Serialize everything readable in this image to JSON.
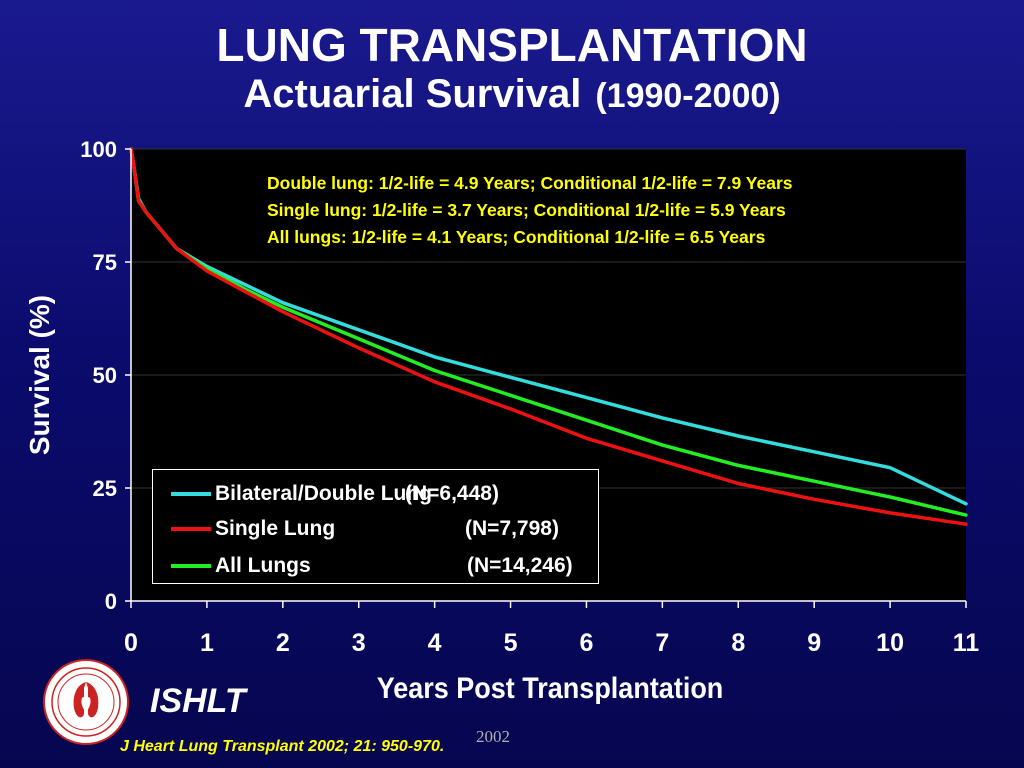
{
  "slide": {
    "title": "LUNG TRANSPLANTATION",
    "subtitle": "Actuarial Survival",
    "subtitle_range": "(1990-2000)",
    "brand": "ISHLT",
    "citation": "J Heart Lung Transplant 2002; 21: 950-970.",
    "year_mark": "2002",
    "logo_icon": "ishlt-seal-icon"
  },
  "annotations": [
    "Double lung: 1/2-life = 4.9 Years; Conditional 1/2-life = 7.9 Years",
    "Single lung: 1/2-life = 3.7 Years; Conditional 1/2-life = 5.9 Years",
    "All lungs: 1/2-life = 4.1 Years; Conditional 1/2-life = 6.5 Years"
  ],
  "chart_data": {
    "type": "line",
    "xlabel": "Years Post Transplantation",
    "ylabel": "Survival (%)",
    "xlim": [
      0,
      11
    ],
    "ylim": [
      0,
      100
    ],
    "xticks": [
      "0",
      "1",
      "2",
      "3",
      "4",
      "5",
      "6",
      "7",
      "8",
      "9",
      "10",
      "11"
    ],
    "yticks": [
      "0",
      "25",
      "50",
      "75",
      "100"
    ],
    "grid": "horizontal",
    "legend_placement": "bottom-left",
    "series": [
      {
        "name": "Bilateral/Double Lung",
        "n_label": "(N=6,448)",
        "color": "#33dddd",
        "x": [
          0,
          0.03,
          0.1,
          0.2,
          0.35,
          0.6,
          1,
          1.5,
          2,
          3,
          4,
          5,
          6,
          7,
          8,
          9,
          10,
          11
        ],
        "y": [
          100,
          97,
          89,
          86,
          83,
          78,
          74,
          70,
          66,
          60,
          54,
          49.5,
          45,
          40.5,
          36.5,
          33,
          29.5,
          21.5
        ]
      },
      {
        "name": "Single Lung",
        "n_label": "(N=7,798)",
        "color": "#ee1111",
        "x": [
          0,
          0.03,
          0.1,
          0.2,
          0.35,
          0.6,
          1,
          1.5,
          2,
          3,
          4,
          5,
          6,
          7,
          8,
          9,
          10,
          11
        ],
        "y": [
          100,
          97,
          88.5,
          86,
          83,
          78,
          73,
          68.5,
          64,
          56,
          48.5,
          42.5,
          36,
          31,
          26,
          22.5,
          19.5,
          17
        ]
      },
      {
        "name": "All Lungs",
        "n_label": "(N=14,246)",
        "color": "#22ee22",
        "x": [
          0,
          0.03,
          0.1,
          0.2,
          0.35,
          0.6,
          1,
          1.5,
          2,
          3,
          4,
          5,
          6,
          7,
          8,
          9,
          10,
          11
        ],
        "y": [
          100,
          97,
          88.5,
          86,
          83,
          78,
          73.5,
          69,
          65,
          58,
          51,
          45.5,
          40,
          34.5,
          30,
          26.5,
          23,
          19
        ]
      }
    ]
  }
}
